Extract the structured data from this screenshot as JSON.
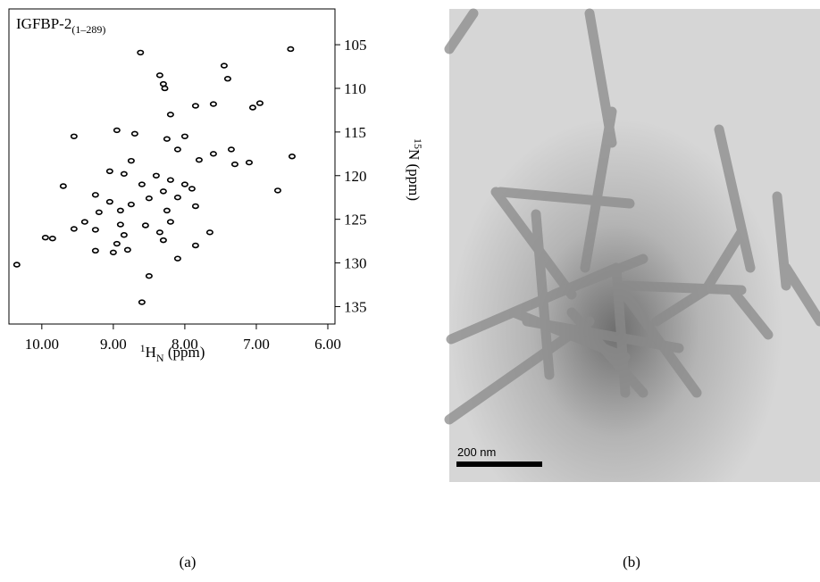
{
  "chart_data": {
    "type": "scatter",
    "title": "IGFBP-2",
    "title_subscript": "(1–289)",
    "xlabel_parts": [
      "1",
      "H",
      "N",
      " (ppm)"
    ],
    "ylabel_parts": [
      "15",
      "N (ppm)"
    ],
    "xlim": [
      10.46,
      5.9
    ],
    "ylim": [
      100.9,
      137.0
    ],
    "xticks": [
      {
        "value": 10,
        "label": "10.00"
      },
      {
        "value": 9,
        "label": "9.00"
      },
      {
        "value": 8,
        "label": "8.00"
      },
      {
        "value": 7,
        "label": "7.00"
      },
      {
        "value": 6,
        "label": "6.00"
      }
    ],
    "yticks": [
      105,
      110,
      115,
      120,
      125,
      130,
      135
    ],
    "color": "#000000",
    "x": [
      8.62,
      7.45,
      8.35,
      8.3,
      8.28,
      7.4,
      6.52,
      7.85,
      7.6,
      7.05,
      6.95,
      8.2,
      8.95,
      9.55,
      8.7,
      8.25,
      8.0,
      8.1,
      7.6,
      7.35,
      6.5,
      8.75,
      7.8,
      7.3,
      7.1,
      9.05,
      8.85,
      8.4,
      8.2,
      8.0,
      8.3,
      8.1,
      7.9,
      9.7,
      8.6,
      8.5,
      6.7,
      9.25,
      9.05,
      8.75,
      8.25,
      7.85,
      9.2,
      8.9,
      9.4,
      8.9,
      8.55,
      8.2,
      9.55,
      9.25,
      8.85,
      8.35,
      7.65,
      9.95,
      9.85,
      8.95,
      8.3,
      7.85,
      9.25,
      9.0,
      8.8,
      8.1,
      8.5,
      8.6,
      10.35
    ],
    "y": [
      105.9,
      107.4,
      108.5,
      109.5,
      110.0,
      108.9,
      105.5,
      112.0,
      111.8,
      112.2,
      111.7,
      113.0,
      114.8,
      115.5,
      115.2,
      115.8,
      115.5,
      117.0,
      117.5,
      117.0,
      117.8,
      118.3,
      118.2,
      118.7,
      118.5,
      119.5,
      119.8,
      120.0,
      120.5,
      121.0,
      121.8,
      122.5,
      121.5,
      121.2,
      121.0,
      122.6,
      121.7,
      122.2,
      123.0,
      123.3,
      124.0,
      123.5,
      124.2,
      124.0,
      125.3,
      125.6,
      125.7,
      125.3,
      126.1,
      126.2,
      126.8,
      126.5,
      126.5,
      127.1,
      127.2,
      127.8,
      127.4,
      128.0,
      128.6,
      128.8,
      128.5,
      129.5,
      131.5,
      134.5,
      130.2
    ]
  },
  "image": {
    "scale_bar": "200 nm"
  },
  "panel_labels": [
    "(a)",
    "(b)"
  ]
}
